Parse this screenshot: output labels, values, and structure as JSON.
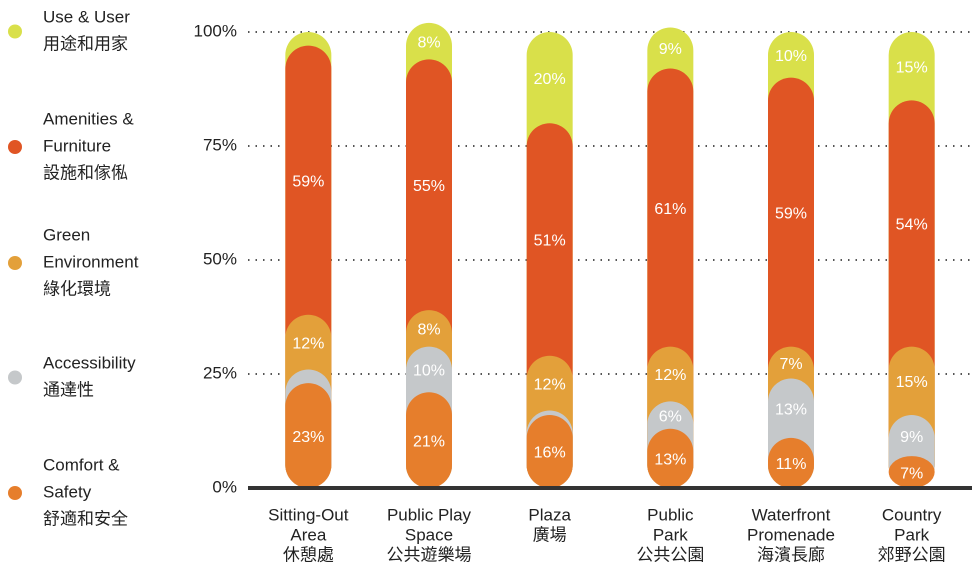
{
  "chart_data": {
    "type": "stacked-pill-bar",
    "categories": [
      [
        "Sitting-Out",
        "Area",
        "休憩處"
      ],
      [
        "Public Play",
        "Space",
        "公共遊樂場"
      ],
      [
        "Plaza",
        "廣場"
      ],
      [
        "Public",
        "Park",
        "公共公園"
      ],
      [
        "Waterfront",
        "Promenade",
        "海濱長廊"
      ],
      [
        "Country",
        "Park",
        "郊野公園"
      ]
    ],
    "series": [
      {
        "name": [
          "Comfort &",
          "Safety",
          "舒適和安全"
        ],
        "color": "#e67e2c",
        "values": [
          23,
          21,
          16,
          13,
          11,
          7
        ],
        "value_labels": [
          "23%",
          "21%",
          "16%",
          "13%",
          "11%",
          "7%"
        ]
      },
      {
        "name": [
          "Accessibility",
          "通達性"
        ],
        "color": "#c5c8ca",
        "values": [
          3,
          10,
          1,
          6,
          13,
          9
        ],
        "value_labels": [
          null,
          "10%",
          null,
          "6%",
          "13%",
          "9%"
        ]
      },
      {
        "name": [
          "Green",
          "Environment",
          "綠化環境"
        ],
        "color": "#e3a03a",
        "values": [
          12,
          8,
          12,
          12,
          7,
          15
        ],
        "value_labels": [
          "12%",
          "8%",
          "12%",
          "12%",
          "7%",
          "15%"
        ]
      },
      {
        "name": [
          "Amenities &",
          "Furniture",
          "設施和傢俬"
        ],
        "color": "#e05524",
        "values": [
          59,
          55,
          51,
          61,
          59,
          54
        ],
        "value_labels": [
          "59%",
          "55%",
          "51%",
          "61%",
          "59%",
          "54%"
        ]
      },
      {
        "name": [
          "Use & User",
          "用途和用家"
        ],
        "color": "#d9e04a",
        "values": [
          3,
          8,
          20,
          9,
          10,
          15
        ],
        "value_labels": [
          null,
          "8%",
          "20%",
          "9%",
          "10%",
          "15%"
        ]
      }
    ],
    "ylim": [
      0,
      100
    ],
    "yticks": [
      {
        "value": 0,
        "label": "0%"
      },
      {
        "value": 25,
        "label": "25%"
      },
      {
        "value": 50,
        "label": "50%"
      },
      {
        "value": 75,
        "label": "75%"
      },
      {
        "value": 100,
        "label": "100%"
      }
    ],
    "grid": true,
    "legend": "left"
  }
}
